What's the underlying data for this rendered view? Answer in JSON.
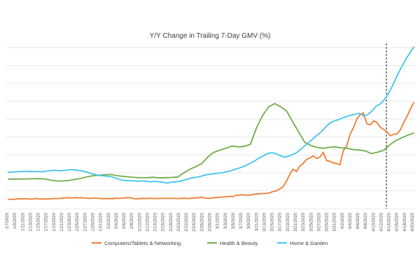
{
  "chart_data": {
    "type": "line",
    "title": "Y/Y Change in Trailing 7-Day GMV (%)",
    "xlabel": "",
    "ylabel": "",
    "grid": true,
    "legend_position": "bottom",
    "y_axis_labels_visible": false,
    "vertical_marker_between": [
      "4/12/2020",
      "4/14/2020"
    ],
    "x_tick_labels": [
      "1/7/2020",
      "1/9/2020",
      "1/11/2020",
      "1/13/2020",
      "1/15/2020",
      "1/17/2020",
      "1/19/2020",
      "1/21/2020",
      "1/23/2020",
      "1/25/2020",
      "1/27/2020",
      "1/29/2020",
      "1/31/2020",
      "2/2/2020",
      "2/4/2020",
      "2/6/2020",
      "2/8/2020",
      "2/10/2020",
      "2/12/2020",
      "2/14/2020",
      "2/16/2020",
      "2/18/2020",
      "2/20/2020",
      "2/22/2020",
      "2/24/2020",
      "2/26/2020",
      "2/28/2020",
      "3/1/2020",
      "3/3/2020",
      "3/5/2020",
      "3/7/2020",
      "3/9/2020",
      "3/11/2020",
      "3/13/2020",
      "3/15/2020",
      "3/17/2020",
      "3/19/2020",
      "3/21/2020",
      "3/23/2020",
      "3/25/2020",
      "3/27/2020",
      "3/29/2020",
      "3/31/2020",
      "4/2/2020",
      "4/4/2020",
      "4/6/2020",
      "4/8/2020",
      "4/10/2020",
      "4/12/2020",
      "4/14/2020",
      "4/16/2020",
      "4/18/2020",
      "4/20/2020"
    ],
    "series": [
      {
        "name": "Computers/Tablets & Networking",
        "color": "#ED7D31",
        "values": [
          0.5,
          0.3,
          0.6,
          1.2,
          0.8,
          1.0,
          0.8,
          0.6,
          1.4,
          0.7,
          0.9,
          0.8,
          0.7,
          1.0,
          1.4,
          1.3,
          1.6,
          2.0,
          2.2,
          1.9,
          2.3,
          2.0,
          2.1,
          1.8,
          1.5,
          1.6,
          1.8,
          1.4,
          1.1,
          1.2,
          1.3,
          1.1,
          1.6,
          1.4,
          1.7,
          2.0,
          2.4,
          1.7,
          0.8,
          1.2,
          1.5,
          1.2,
          1.7,
          1.3,
          1.4,
          1.3,
          1.5,
          1.5,
          1.4,
          1.5,
          1.3,
          1.2,
          1.6,
          1.5,
          1.3,
          2.0,
          2.0,
          2.3,
          2.5,
          1.6,
          1.4,
          2.0,
          2.4,
          2.5,
          2.9,
          3.4,
          3.8,
          3.5,
          4.7,
          5.2,
          5.5,
          5.0,
          5.2,
          5.8,
          6.3,
          6.5,
          6.8,
          7.0,
          7.6,
          9.0,
          9.8,
          12.0,
          14.5,
          20.5,
          28.5,
          34.0,
          31.5,
          37.5,
          40.5,
          45.0,
          46.5,
          49.0,
          46.0,
          47.5,
          53.0,
          43.5,
          43.0,
          41.0,
          40.5,
          39.0,
          55.0,
          60.0,
          73.0,
          80.5,
          90.0,
          95.0,
          97.0,
          85.0,
          83.5,
          88.0,
          86.5,
          81.0,
          78.5,
          76.0,
          71.5,
          73.0,
          73.5,
          78.0,
          86.0,
          93.0,
          101.0,
          108.5
        ]
      },
      {
        "name": "Health & Beauty",
        "color": "#70AD47",
        "values": [
          23.0,
          23.1,
          23.0,
          23.2,
          23.3,
          23.5,
          23.2,
          21.8,
          20.8,
          20.9,
          21.5,
          22.6,
          23.9,
          25.5,
          26.8,
          27.3,
          27.8,
          28.0,
          26.8,
          26.0,
          25.3,
          24.8,
          24.5,
          24.6,
          25.1,
          24.3,
          24.6,
          24.8,
          25.4,
          30.0,
          34.0,
          37.0,
          40.5,
          48.0,
          53.0,
          55.5,
          57.5,
          60.0,
          59.0,
          59.5,
          62.0,
          80.0,
          94.0,
          103.5,
          107.5,
          104.0,
          99.0,
          87.0,
          75.5,
          64.0,
          60.5,
          58.5,
          57.5,
          58.5,
          59.0,
          58.0,
          57.5,
          56.0,
          55.5,
          54.5,
          51.5,
          53.0,
          55.0,
          61.0,
          66.0,
          69.0,
          72.0,
          74.5
        ]
      },
      {
        "name": "Home & Garden",
        "color": "#41C3EE",
        "values": [
          30.5,
          31.0,
          31.2,
          31.5,
          31.8,
          31.6,
          31.5,
          31.5,
          31.2,
          31.9,
          32.5,
          32.8,
          32.3,
          32.6,
          33.0,
          33.5,
          33.2,
          32.6,
          31.8,
          30.5,
          29.0,
          27.8,
          27.0,
          26.5,
          26.0,
          25.2,
          23.5,
          22.0,
          21.5,
          21.2,
          21.0,
          20.5,
          21.0,
          20.8,
          19.8,
          20.5,
          20.0,
          19.5,
          18.5,
          19.5,
          20.0,
          20.5,
          21.8,
          23.0,
          24.5,
          25.0,
          26.0,
          27.5,
          28.2,
          28.8,
          29.5,
          30.0,
          31.0,
          32.0,
          33.5,
          35.0,
          36.5,
          38.5,
          41.0,
          43.5,
          46.5,
          49.0,
          51.5,
          52.5,
          51.5,
          49.5,
          47.5,
          48.5,
          50.5,
          52.5,
          56.5,
          60.5,
          64.5,
          68.5,
          72.5,
          76.5,
          81.5,
          86.0,
          88.0,
          89.5,
          91.5,
          93.0,
          94.5,
          95.5,
          96.5,
          93.5,
          95.0,
          99.0,
          104.5,
          107.0,
          112.0,
          119.0,
          128.0,
          138.5,
          147.5,
          156.0,
          163.5,
          170.5
        ]
      }
    ]
  }
}
